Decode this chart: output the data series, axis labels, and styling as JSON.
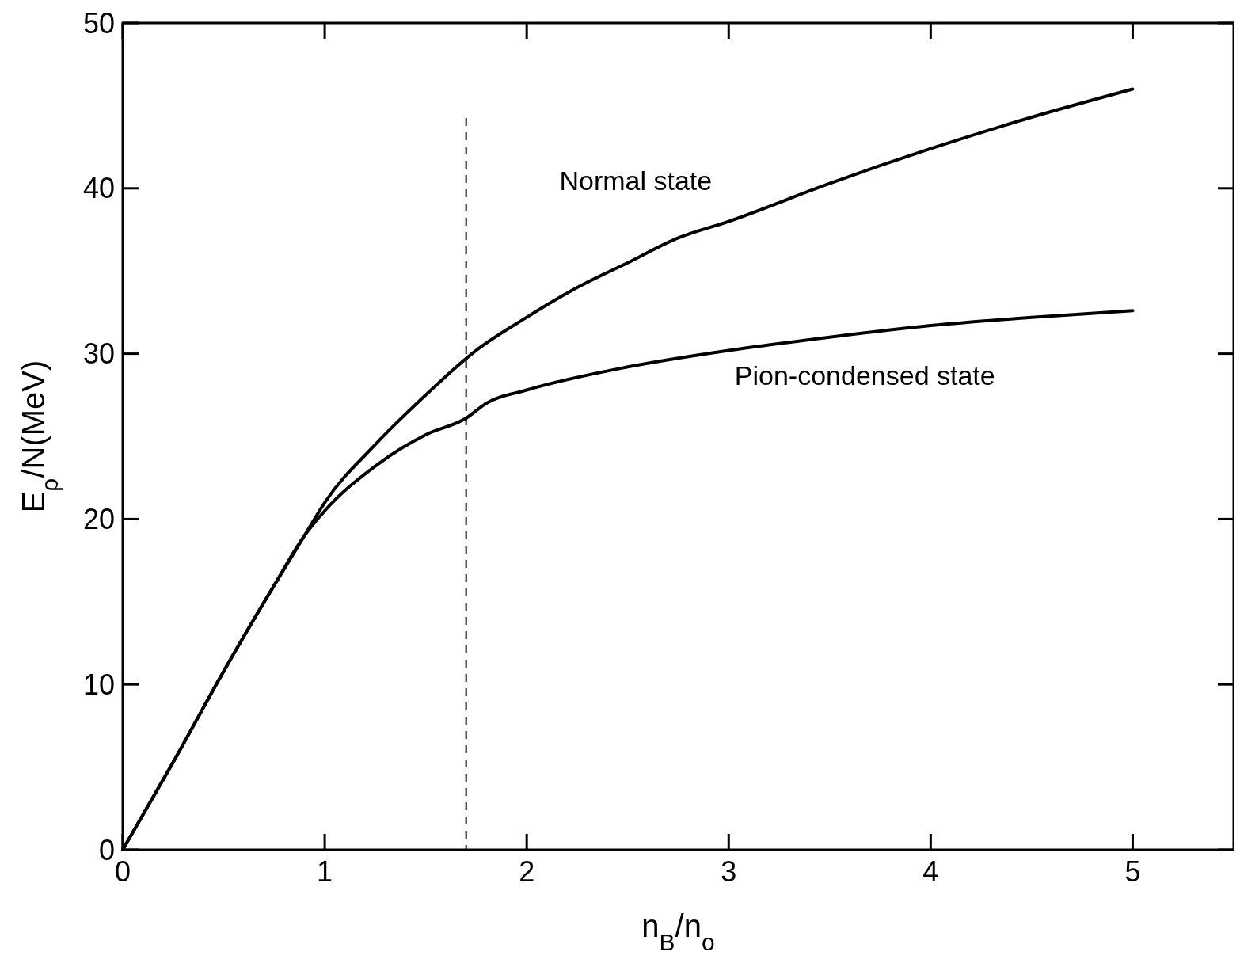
{
  "chart_data": {
    "type": "line",
    "xlabel": "n$_{B}$/n$_{o}$",
    "ylabel": "E$_{ρ}$/N(MeV)",
    "x": [
      0,
      0.25,
      0.5,
      0.75,
      0.9,
      1,
      1.25,
      1.5,
      1.75,
      2,
      2.25,
      2.5,
      2.75,
      3,
      3.5,
      4,
      4.5,
      5
    ],
    "series": [
      {
        "name": "Normal state",
        "color": "#000000",
        "values": [
          0,
          5.3,
          10.8,
          16,
          19,
          21,
          24.5,
          27.5,
          30.2,
          32.2,
          34,
          35.5,
          37,
          38,
          40.3,
          42.4,
          44.3,
          46
        ]
      },
      {
        "name": "Pion-condensed state",
        "color": "#000000",
        "x": [
          0,
          0.25,
          0.5,
          0.75,
          0.9,
          1,
          1.25,
          1.5,
          1.7,
          1.8,
          2,
          2.5,
          3,
          3.5,
          4,
          4.5,
          5
        ],
        "values": [
          0,
          5.3,
          10.8,
          16,
          19,
          20.5,
          23.2,
          25.1,
          26.1,
          27,
          27.8,
          29.2,
          30.2,
          31,
          31.7,
          32.2,
          32.6
        ]
      }
    ],
    "xlim": [
      0,
      5.5
    ],
    "xticks": [
      0,
      1,
      2,
      3,
      4,
      5
    ],
    "ylim": [
      0,
      50
    ],
    "yticks": [
      0,
      10,
      20,
      30,
      40,
      50
    ],
    "ref_lines": [
      {
        "axis": "x",
        "value": 1.7,
        "line_style": "dashed"
      }
    ],
    "grid": false,
    "marker": "none",
    "line_style": "solid"
  }
}
